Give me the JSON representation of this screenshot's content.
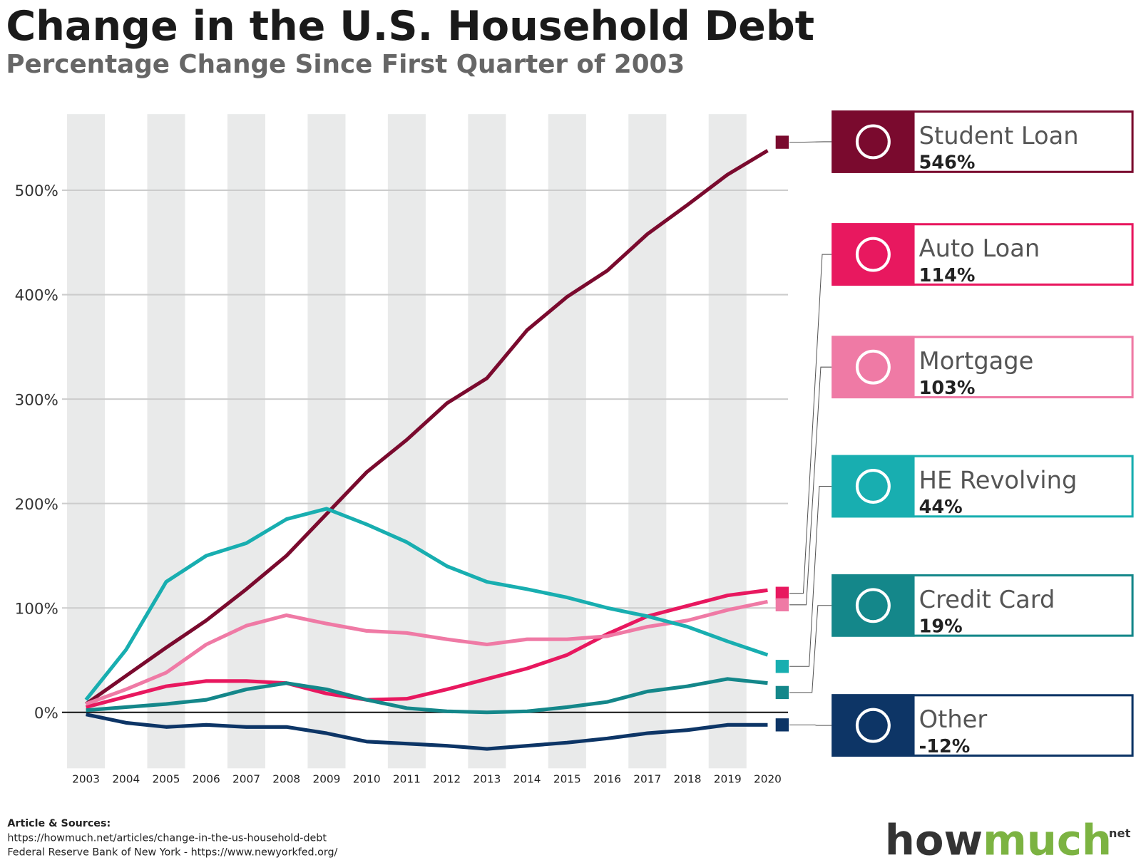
{
  "title": "Change in the U.S. Household Debt",
  "subtitle": "Percentage Change Since First Quarter of 2003",
  "chart_data": {
    "type": "line",
    "categories": [
      "2003",
      "2004",
      "2005",
      "2006",
      "2007",
      "2008",
      "2009",
      "2010",
      "2011",
      "2012",
      "2013",
      "2014",
      "2015",
      "2016",
      "2017",
      "2018",
      "2019",
      "2020"
    ],
    "ylim": [
      -55,
      575
    ],
    "yticks": [
      {
        "value": 0,
        "label": "0%"
      },
      {
        "value": 100,
        "label": "100%"
      },
      {
        "value": 200,
        "label": "200%"
      },
      {
        "value": 300,
        "label": "300%"
      },
      {
        "value": 400,
        "label": "400%"
      },
      {
        "value": 500,
        "label": "500%"
      }
    ],
    "grid": true,
    "series": [
      {
        "name": "Student Loan",
        "color": "#7a0a2e",
        "values": [
          8,
          35,
          62,
          88,
          118,
          150,
          190,
          230,
          261,
          296,
          320,
          366,
          398,
          423,
          458,
          486,
          515,
          538
        ],
        "latest": 546,
        "latest_label": "546%"
      },
      {
        "name": "Auto Loan",
        "color": "#e8185f",
        "values": [
          5,
          15,
          25,
          30,
          30,
          28,
          18,
          12,
          13,
          22,
          32,
          42,
          55,
          75,
          92,
          102,
          112,
          117
        ],
        "latest": 114,
        "latest_label": "114%"
      },
      {
        "name": "Mortgage",
        "color": "#ef7aa5",
        "values": [
          8,
          22,
          38,
          65,
          83,
          93,
          85,
          78,
          76,
          70,
          65,
          70,
          70,
          73,
          82,
          88,
          98,
          106
        ],
        "latest": 103,
        "latest_label": "103%"
      },
      {
        "name": "HE Revolving",
        "color": "#18aeb0",
        "values": [
          12,
          60,
          125,
          150,
          162,
          185,
          195,
          180,
          163,
          140,
          125,
          118,
          110,
          100,
          92,
          82,
          68,
          55
        ],
        "latest": 44,
        "latest_label": "44%"
      },
      {
        "name": "Credit Card",
        "color": "#14878a",
        "values": [
          2,
          5,
          8,
          12,
          22,
          28,
          22,
          12,
          4,
          1,
          0,
          1,
          5,
          10,
          20,
          25,
          32,
          28
        ],
        "latest": 19,
        "latest_label": "19%"
      },
      {
        "name": "Other",
        "color": "#0d3566",
        "values": [
          -2,
          -10,
          -14,
          -12,
          -14,
          -14,
          -20,
          -28,
          -30,
          -32,
          -35,
          -32,
          -29,
          -25,
          -20,
          -17,
          -12,
          -12
        ],
        "latest": -12,
        "latest_label": "-12%"
      }
    ]
  },
  "footer": {
    "heading": "Article & Sources:",
    "lines": [
      "https://howmuch.net/articles/change-in-the-us-household-debt",
      "Federal Reserve Bank of New York - https://www.newyorkfed.org/"
    ]
  },
  "logo": {
    "part1": "how",
    "part2": "much",
    "suffix": "net"
  }
}
